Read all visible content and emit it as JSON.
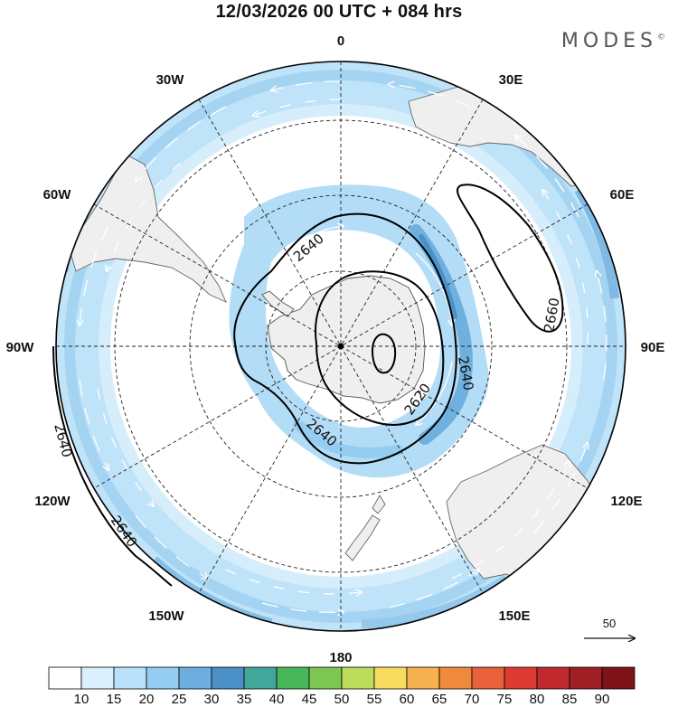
{
  "title": "12/03/2026  00 UTC  + 084 hrs",
  "brand": "MODES",
  "brand_mark": "©",
  "longitude_labels": {
    "lon_0": "0",
    "lon_30e": "30E",
    "lon_60e": "60E",
    "lon_90e": "90E",
    "lon_120e": "120E",
    "lon_150e": "150E",
    "lon_180": "180",
    "lon_150w": "150W",
    "lon_120w": "120W",
    "lon_90w": "90W",
    "lon_60w": "60W",
    "lon_30w": "30W"
  },
  "contour_labels": {
    "c1": "2640",
    "c2": "2660",
    "c3": "2640",
    "c4": "2620",
    "c5": "2640",
    "c6": "2640",
    "c7": "2640"
  },
  "reference_vector": {
    "label": "50"
  },
  "colorbar": {
    "ticks": [
      "10",
      "15",
      "20",
      "25",
      "30",
      "35",
      "40",
      "45",
      "50",
      "55",
      "60",
      "65",
      "70",
      "75",
      "80",
      "85",
      "90"
    ],
    "colors": [
      "#ffffff",
      "#dbeffc",
      "#b9e1f9",
      "#94cdf1",
      "#6eaede",
      "#4c90c8",
      "#43a69a",
      "#47b75a",
      "#7dc654",
      "#bddc5c",
      "#f7dd5f",
      "#f5b050",
      "#ef8a3d",
      "#e8613a",
      "#dc3a32",
      "#c02a2e",
      "#9e1f24",
      "#7e1419"
    ]
  }
}
